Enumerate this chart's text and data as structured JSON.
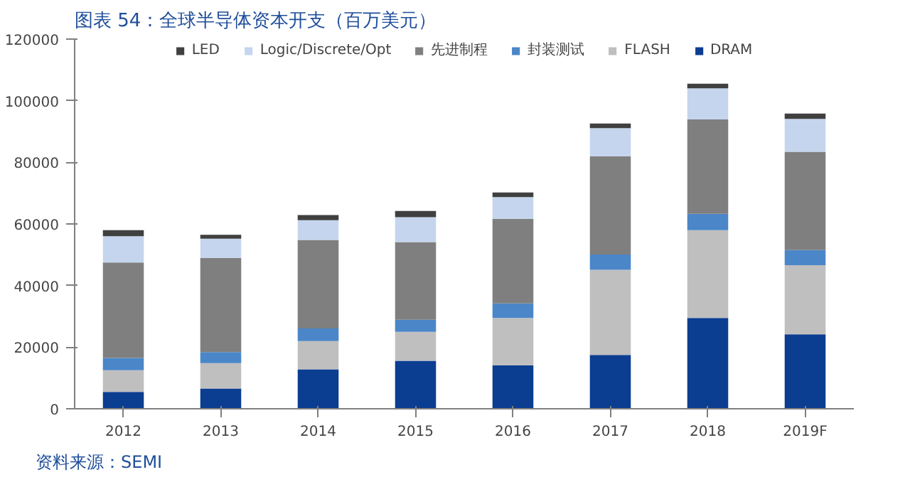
{
  "chart_data": {
    "type": "bar",
    "title": "图表 54：全球半导体资本开支（百万美元）",
    "stacked": true,
    "categories": [
      "2012",
      "2013",
      "2014",
      "2015",
      "2016",
      "2017",
      "2018",
      "2019F"
    ],
    "series": [
      {
        "name": "DRAM",
        "color": "#0b3d91",
        "values": [
          5500,
          6600,
          12800,
          15600,
          14100,
          17500,
          29500,
          24200
        ]
      },
      {
        "name": "FLASH",
        "color": "#bfbfbf",
        "values": [
          7000,
          8200,
          9200,
          9400,
          15400,
          27600,
          28500,
          22400
        ]
      },
      {
        "name": "封装测试",
        "color": "#4a86c8",
        "values": [
          4000,
          3600,
          4100,
          3900,
          4700,
          5000,
          5300,
          4900
        ]
      },
      {
        "name": "先进制程",
        "color": "#7f7f7f",
        "values": [
          31000,
          30600,
          28700,
          25200,
          27400,
          31800,
          30600,
          31900
        ]
      },
      {
        "name": "Logic/Discrete/Opt",
        "color": "#c5d5ee",
        "values": [
          8500,
          6200,
          6400,
          8100,
          7100,
          9200,
          10100,
          10700
        ]
      },
      {
        "name": "LED",
        "color": "#404040",
        "values": [
          2000,
          1300,
          1700,
          2000,
          1500,
          1500,
          1500,
          1700
        ]
      }
    ],
    "ylim": [
      0,
      120000
    ],
    "yticks": [
      0,
      20000,
      40000,
      60000,
      80000,
      100000,
      120000
    ],
    "grid": false,
    "legend": "top",
    "annotations": [
      "资料来源：SEMI"
    ]
  }
}
